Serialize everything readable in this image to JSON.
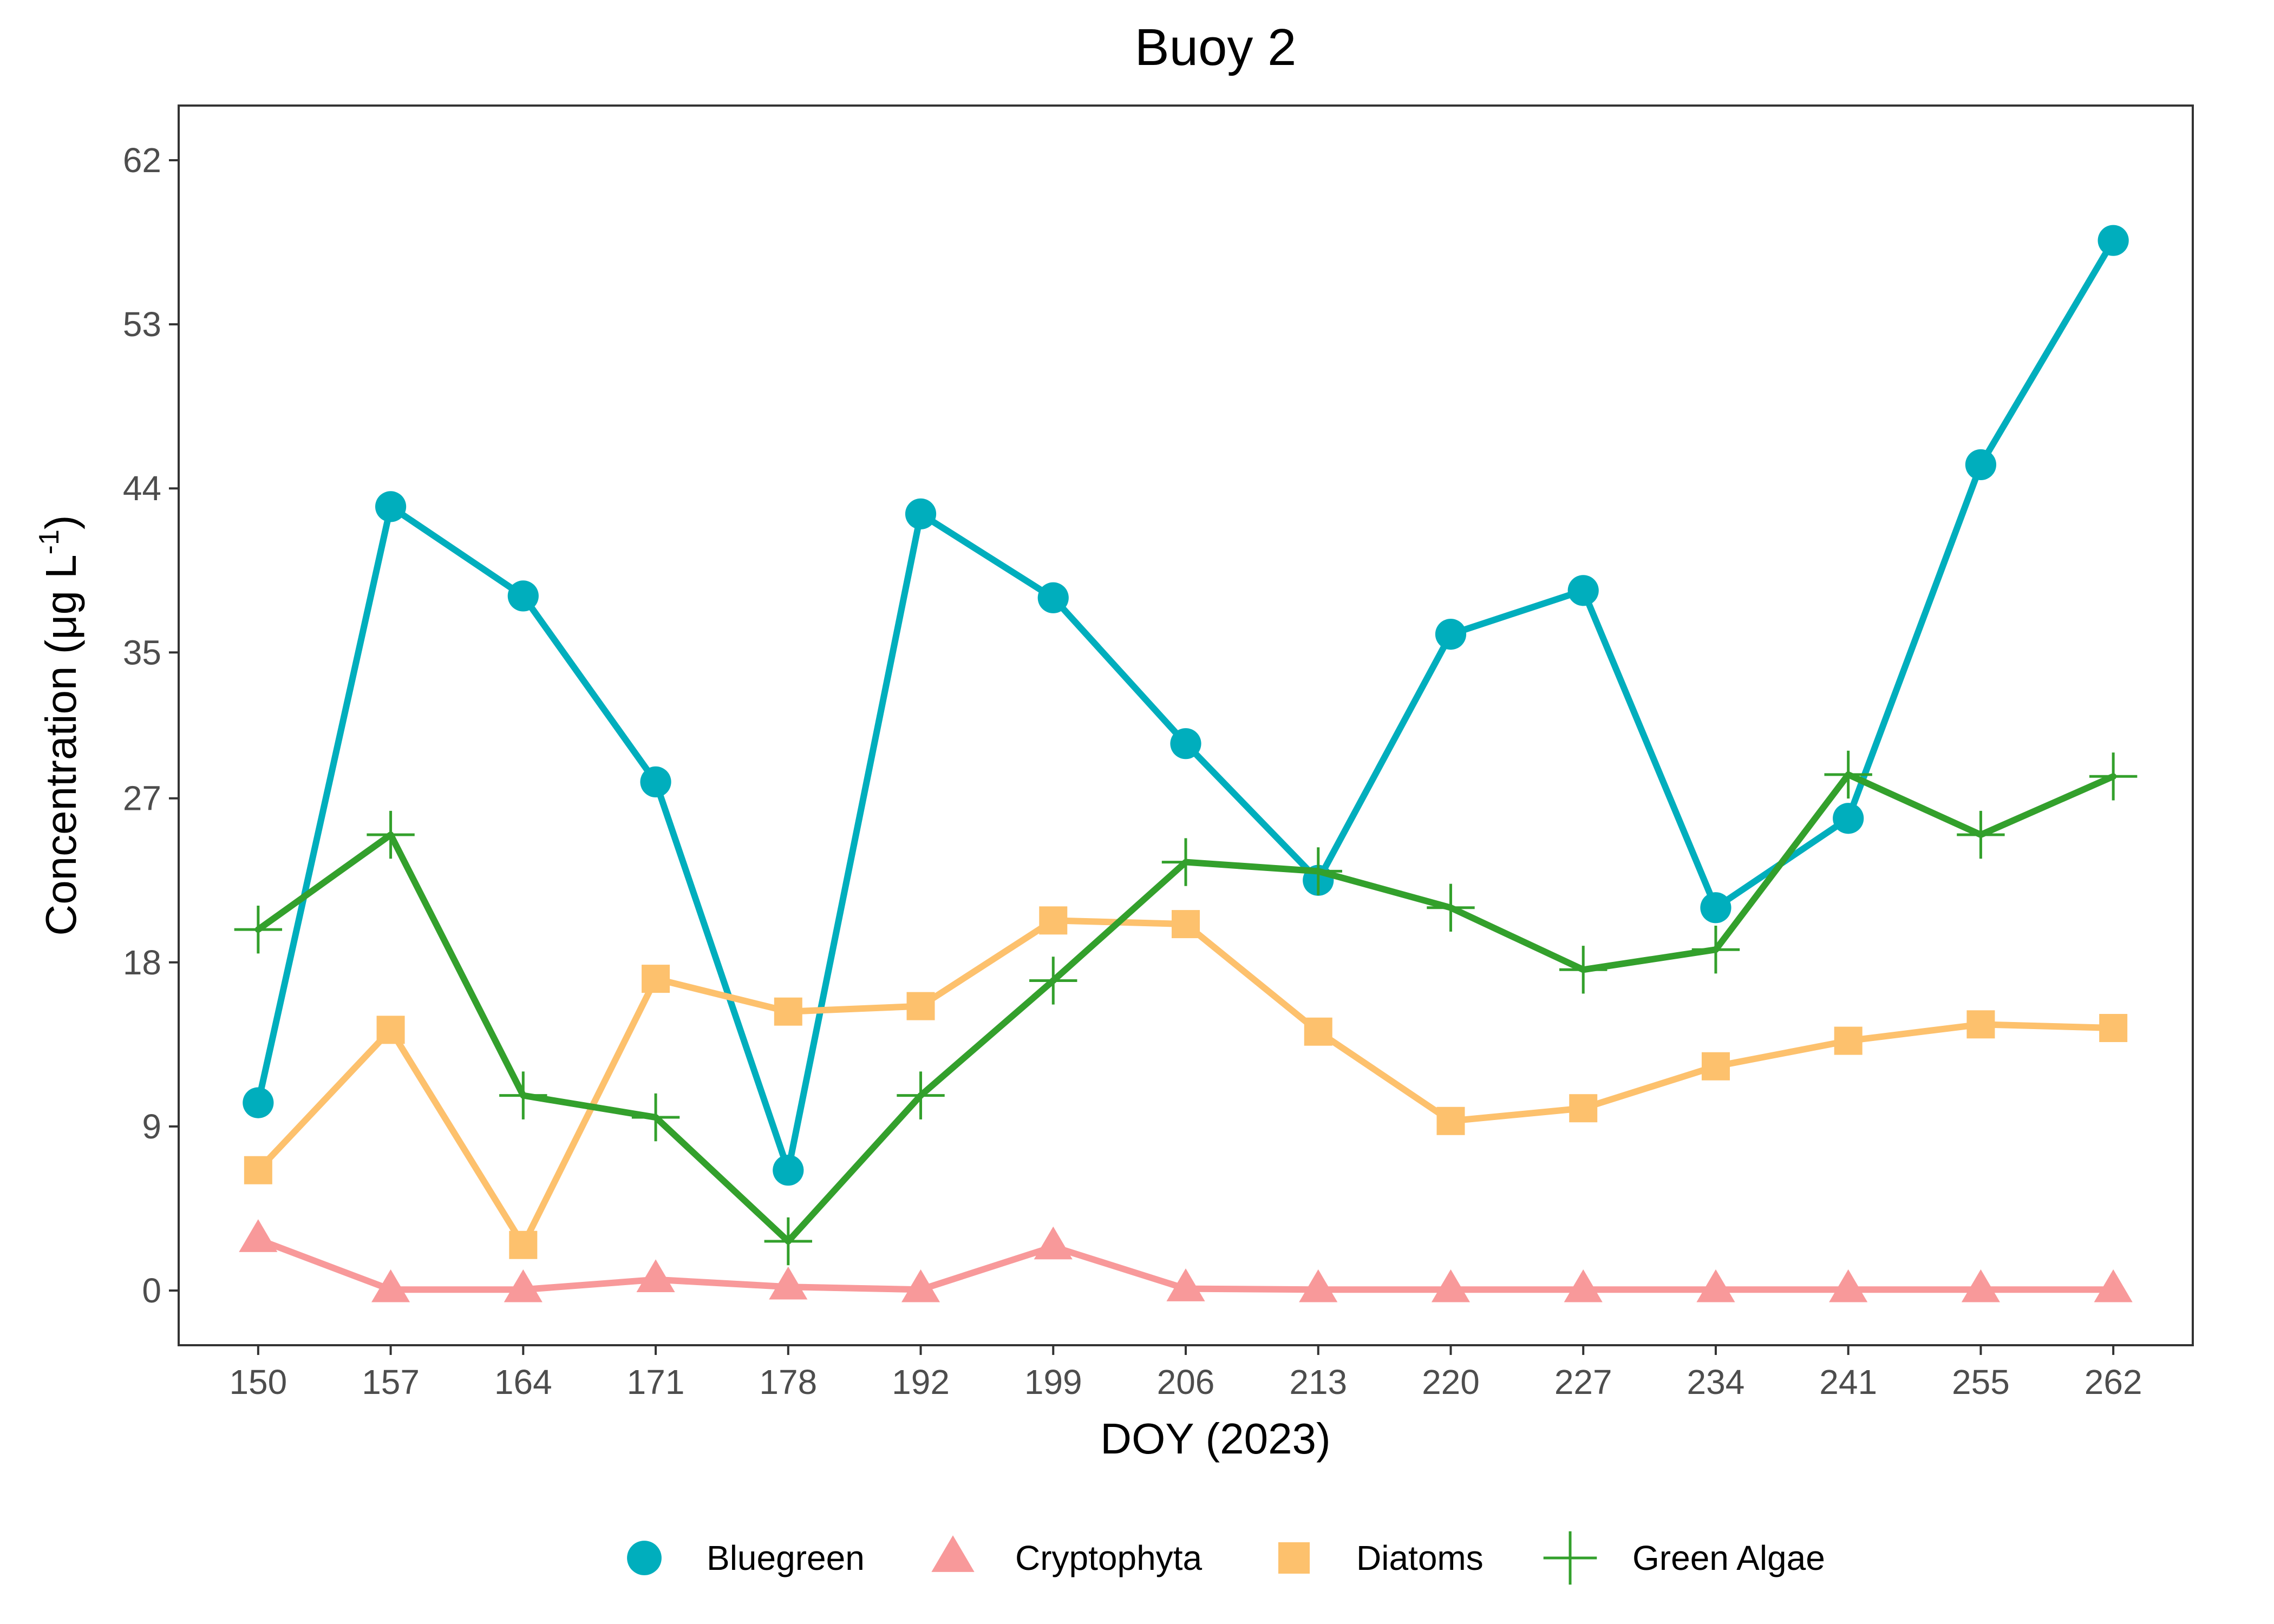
{
  "chart_data": {
    "type": "line",
    "title": "Buoy 2",
    "xlabel": "DOY (2023)",
    "ylabel": "Concentration (μg L",
    "ylabel_superscript": "-1",
    "ylabel_close": ")",
    "categories": [
      "150",
      "157",
      "164",
      "171",
      "178",
      "192",
      "199",
      "206",
      "213",
      "220",
      "227",
      "234",
      "241",
      "255",
      "262"
    ],
    "yticks": [
      "0",
      "9",
      "18",
      "27",
      "35",
      "44",
      "53",
      "62"
    ],
    "ytick_values": [
      0,
      9,
      18,
      27,
      35,
      44,
      53,
      62
    ],
    "ylim": [
      -3,
      65
    ],
    "grid": false,
    "legend_position": "bottom",
    "series": [
      {
        "name": "Bluegreen",
        "color": "#00aebd",
        "marker": "circle",
        "values": [
          10.3,
          43.0,
          38.1,
          27.9,
          6.6,
          42.6,
          38.0,
          30.0,
          22.5,
          36.0,
          38.4,
          21.0,
          25.9,
          45.3,
          57.6
        ]
      },
      {
        "name": "Cryptophyta",
        "color": "#f8999a",
        "marker": "triangle",
        "values": [
          2.8,
          0.05,
          0.05,
          0.6,
          0.2,
          0.05,
          2.4,
          0.1,
          0.05,
          0.05,
          0.05,
          0.05,
          0.05,
          0.05,
          0.05
        ]
      },
      {
        "name": "Diatoms",
        "color": "#fdc16d",
        "marker": "square",
        "values": [
          6.6,
          14.3,
          2.5,
          17.1,
          15.3,
          15.6,
          20.3,
          20.1,
          14.2,
          9.3,
          10.0,
          12.3,
          13.7,
          14.6,
          14.4
        ]
      },
      {
        "name": "Green Algae",
        "color": "#33a02c",
        "marker": "plus",
        "values": [
          19.8,
          25.0,
          10.7,
          9.5,
          2.7,
          10.7,
          17.0,
          23.5,
          23.0,
          21.0,
          17.6,
          18.7,
          28.3,
          25.0,
          28.2
        ]
      }
    ]
  }
}
